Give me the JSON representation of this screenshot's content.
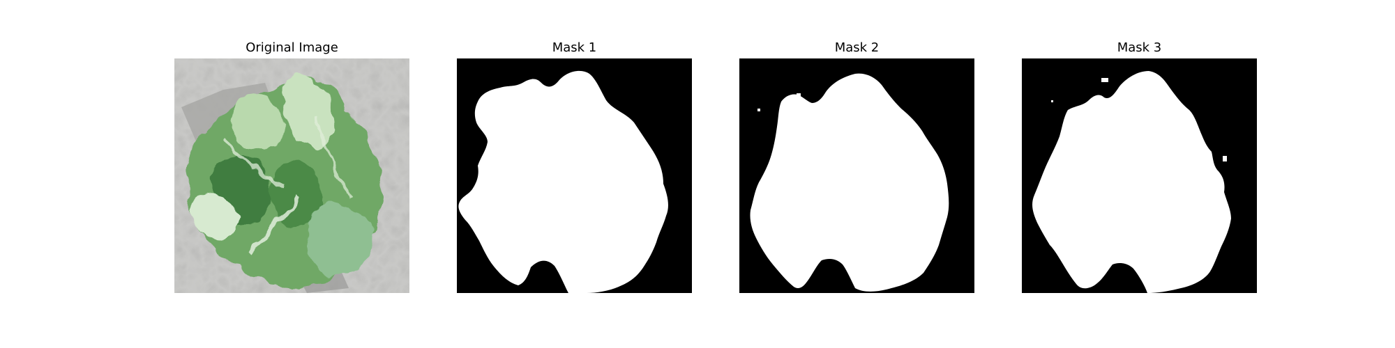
{
  "panels": [
    {
      "title": "Original Image",
      "kind": "photo"
    },
    {
      "title": "Mask 1",
      "kind": "mask"
    },
    {
      "title": "Mask 2",
      "kind": "mask"
    },
    {
      "title": "Mask 3",
      "kind": "mask"
    }
  ],
  "colors": {
    "figure_background": "#ffffff",
    "mask_background": "#000000",
    "mask_foreground": "#ffffff",
    "photo_background": "#c9c9c7",
    "leaf_light": "#a9cf9f",
    "leaf_mid": "#5f9b5a",
    "leaf_dark": "#2f6d34"
  }
}
